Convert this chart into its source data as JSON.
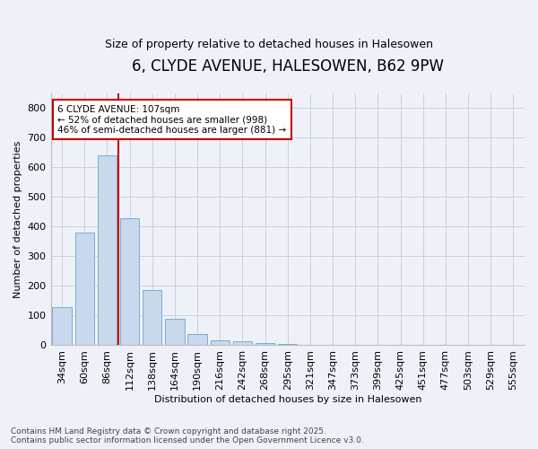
{
  "title": "6, CLYDE AVENUE, HALESOWEN, B62 9PW",
  "subtitle": "Size of property relative to detached houses in Halesowen",
  "xlabel": "Distribution of detached houses by size in Halesowen",
  "ylabel": "Number of detached properties",
  "bar_values": [
    130,
    380,
    640,
    430,
    185,
    90,
    38,
    18,
    14,
    7,
    5,
    0,
    0,
    0,
    0,
    0,
    0,
    0,
    0,
    0,
    0
  ],
  "bar_labels": [
    "34sqm",
    "60sqm",
    "86sqm",
    "112sqm",
    "138sqm",
    "164sqm",
    "190sqm",
    "216sqm",
    "242sqm",
    "268sqm",
    "295sqm",
    "321sqm",
    "347sqm",
    "373sqm",
    "399sqm",
    "425sqm",
    "451sqm",
    "477sqm",
    "503sqm",
    "529sqm",
    "555sqm"
  ],
  "bar_color": "#c8d8ed",
  "bar_edge_color": "#7aadd4",
  "vline_x": 3,
  "vline_color": "#cc0000",
  "annotation_text": "6 CLYDE AVENUE: 107sqm\n← 52% of detached houses are smaller (998)\n46% of semi-detached houses are larger (881) →",
  "annotation_box_color": "white",
  "annotation_box_edge": "#cc0000",
  "ylim": [
    0,
    850
  ],
  "yticks": [
    0,
    100,
    200,
    300,
    400,
    500,
    600,
    700,
    800
  ],
  "grid_color": "#c8d0dc",
  "background_color": "#eef2f8",
  "plot_bg_color": "#eef2f8",
  "footer_line1": "Contains HM Land Registry data © Crown copyright and database right 2025.",
  "footer_line2": "Contains public sector information licensed under the Open Government Licence v3.0.",
  "title_fontsize": 12,
  "subtitle_fontsize": 9,
  "axis_label_fontsize": 8,
  "tick_fontsize": 8,
  "annotation_fontsize": 7.5,
  "footer_fontsize": 6.5
}
